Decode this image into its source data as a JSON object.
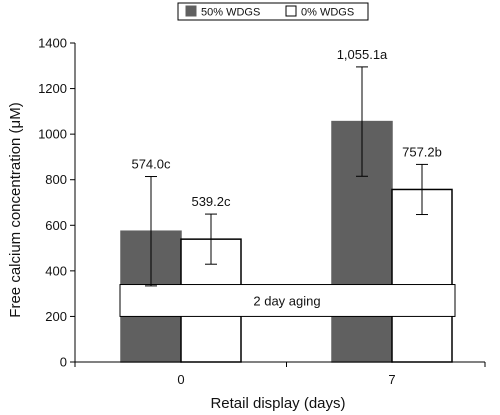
{
  "chart_data": {
    "type": "bar",
    "categories": [
      "0",
      "7"
    ],
    "series": [
      {
        "name": "50% WDGS",
        "color": "#606060",
        "values": [
          574.0,
          1055.1
        ],
        "errors": [
          240,
          240
        ],
        "labels": [
          "574.0c",
          "1,055.1a"
        ]
      },
      {
        "name": "0% WDGS",
        "color": "#ffffff",
        "values": [
          539.2,
          757.2
        ],
        "errors": [
          110,
          110
        ],
        "labels": [
          "539.2c",
          "757.2b"
        ]
      }
    ],
    "xlabel": "Retail display (days)",
    "ylabel": "Free calcium concentration (μM)",
    "ylim": [
      0,
      1400
    ],
    "yticks": [
      "0",
      "200",
      "400",
      "600",
      "800",
      "1000",
      "1200",
      "1400"
    ],
    "annotation": "2 day aging",
    "annotation_yrange": [
      200,
      340
    ],
    "legend_position": "top",
    "grid": false
  }
}
